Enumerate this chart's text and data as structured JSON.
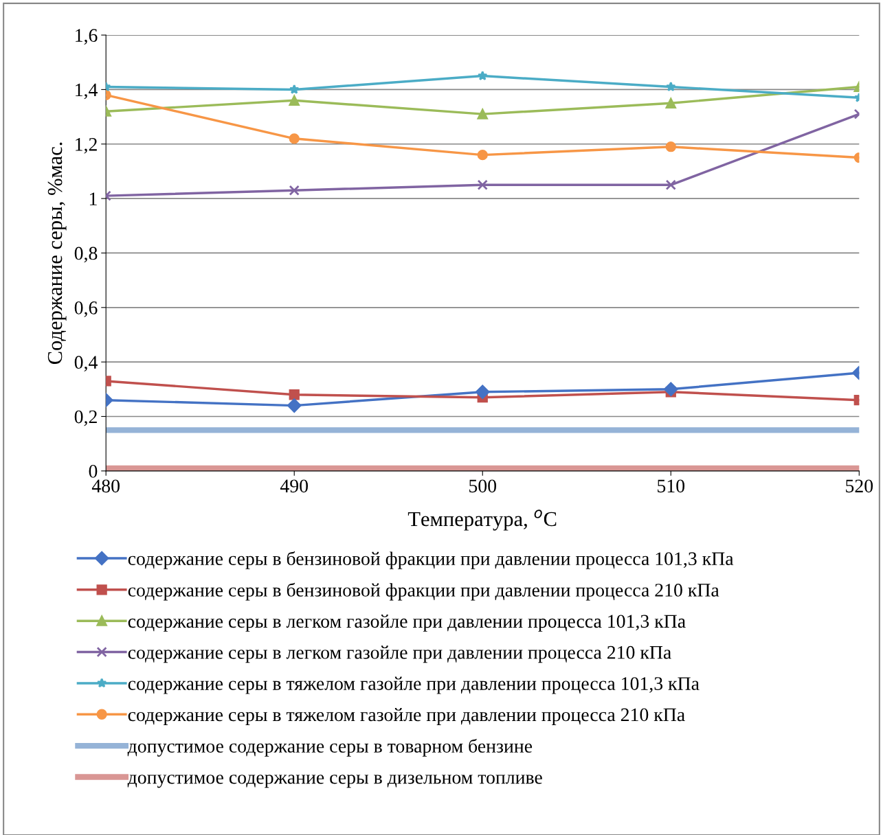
{
  "chart_data": {
    "type": "line",
    "xlabel": "Температура, $^{o}$C",
    "ylabel": "Содержание серы, %мас.",
    "x": [
      480,
      490,
      500,
      510,
      520
    ],
    "xlim": [
      480,
      520
    ],
    "xticks": [
      480,
      490,
      500,
      510,
      520
    ],
    "ylim": [
      0,
      1.6
    ],
    "yticks": [
      0,
      {
        "value": 0.2,
        "label": "0,2"
      },
      {
        "value": 0.4,
        "label": "0,4"
      },
      {
        "value": 0.6,
        "label": "0,6"
      },
      {
        "value": 0.8,
        "label": "0,8"
      },
      1,
      {
        "value": 1.2,
        "label": "1,2"
      },
      {
        "value": 1.4,
        "label": "1,4"
      },
      {
        "value": 1.6,
        "label": "1,6"
      }
    ],
    "grid": "y",
    "legend": "bottom",
    "series": [
      {
        "name": "содержание серы в бензиновой фракции при давлении процесса 101,3 кПа",
        "color": "#4472c4",
        "marker": "diamond",
        "values": [
          0.26,
          0.24,
          0.29,
          0.3,
          0.36
        ]
      },
      {
        "name": "содержание серы в бензиновой фракции при давлении процесса 210 кПа",
        "color": "#c0504d",
        "marker": "square",
        "values": [
          0.33,
          0.28,
          0.27,
          0.29,
          0.26
        ]
      },
      {
        "name": "содержание серы в легком газойле при давлении процесса 101,3 кПа",
        "color": "#9bbb59",
        "marker": "triangle",
        "values": [
          1.32,
          1.36,
          1.31,
          1.35,
          1.41
        ]
      },
      {
        "name": "содержание серы в легком газойле при давлении процесса 210 кПа",
        "color": "#8064a2",
        "marker": "cross",
        "values": [
          1.01,
          1.03,
          1.05,
          1.05,
          1.31
        ]
      },
      {
        "name": "содержание серы в тяжелом газойле при давлении процесса 101,3 кПа",
        "color": "#4bacc6",
        "marker": "star",
        "values": [
          1.41,
          1.4,
          1.45,
          1.41,
          1.37
        ]
      },
      {
        "name": "содержание серы в тяжелом газойле при давлении процесса 210 кПа",
        "color": "#f79646",
        "marker": "circle",
        "values": [
          1.38,
          1.22,
          1.16,
          1.19,
          1.15
        ]
      }
    ],
    "ref_lines": [
      {
        "axis": "y",
        "value": 0.15,
        "label": "допустимое содержание серы в товарном бензине",
        "color": "#95b3d7"
      },
      {
        "axis": "y",
        "value": 0.01,
        "label": "допустимое содержание серы в дизельном топливе",
        "color": "#d99694"
      }
    ]
  }
}
